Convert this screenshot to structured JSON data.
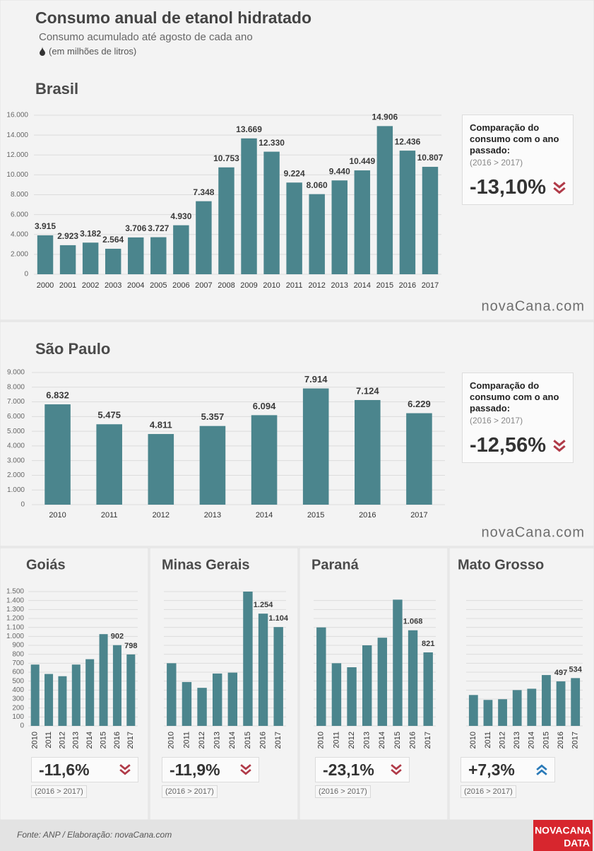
{
  "header": {
    "title": "Consumo anual de etanol hidratado",
    "subtitle": "Consumo acumulado até agosto de cada ano",
    "unit": "(em milhões de litros)"
  },
  "watermark": "novaCana.com",
  "footer": {
    "source": "Fonte: ANP  / Elaboração: novaCana.com",
    "logo_top": "NOVACANA",
    "logo_bottom": "DATA"
  },
  "chart_data": [
    {
      "type": "bar",
      "title": "Brasil",
      "color": "#4b858d",
      "grid": true,
      "categories": [
        "2000",
        "2001",
        "2002",
        "2003",
        "2004",
        "2005",
        "2006",
        "2007",
        "2008",
        "2009",
        "2010",
        "2011",
        "2012",
        "2013",
        "2014",
        "2015",
        "2016",
        "2017"
      ],
      "values": [
        3915,
        2923,
        3182,
        2564,
        3706,
        3727,
        4930,
        7348,
        10753,
        13669,
        12330,
        9224,
        8060,
        9440,
        10449,
        14906,
        12436,
        10807
      ],
      "value_labels": [
        "3.915",
        "2.923",
        "3.182",
        "2.564",
        "3.706",
        "3.727",
        "4.930",
        "7.348",
        "10.753",
        "13.669",
        "12.330",
        "9.224",
        "8.060",
        "9.440",
        "10.449",
        "14.906",
        "12.436",
        "10.807"
      ],
      "ylim": [
        0,
        16000
      ],
      "yticks": [
        0,
        {
          "value": 2000,
          "label": "2.000"
        },
        {
          "value": 4000,
          "label": "4.000"
        },
        {
          "value": 6000,
          "label": "6.000"
        },
        {
          "value": 8000,
          "label": "8.000"
        },
        {
          "value": 10000,
          "label": "10.000"
        },
        {
          "value": 12000,
          "label": "12.000"
        },
        {
          "value": 14000,
          "label": "14.000"
        },
        {
          "value": 16000,
          "label": "16.000"
        }
      ],
      "comparison": {
        "heading": "Comparação do consumo com o ano passado:",
        "period": "(2016 > 2017)",
        "change": "-13,10%",
        "trend": "down"
      }
    },
    {
      "type": "bar",
      "title": "São Paulo",
      "color": "#4b858d",
      "grid": true,
      "categories": [
        "2010",
        "2011",
        "2012",
        "2013",
        "2014",
        "2015",
        "2016",
        "2017"
      ],
      "values": [
        6832,
        5475,
        4811,
        5357,
        6094,
        7914,
        7124,
        6229
      ],
      "value_labels": [
        "6.832",
        "5.475",
        "4.811",
        "5.357",
        "6.094",
        "7.914",
        "7.124",
        "6.229"
      ],
      "ylim": [
        0,
        9000
      ],
      "yticks": [
        0,
        {
          "value": 1000,
          "label": "1.000"
        },
        {
          "value": 2000,
          "label": "2.000"
        },
        {
          "value": 3000,
          "label": "3.000"
        },
        {
          "value": 4000,
          "label": "4.000"
        },
        {
          "value": 5000,
          "label": "5.000"
        },
        {
          "value": 6000,
          "label": "6.000"
        },
        {
          "value": 7000,
          "label": "7.000"
        },
        {
          "value": 8000,
          "label": "8.000"
        },
        {
          "value": 9000,
          "label": "9.000"
        }
      ],
      "comparison": {
        "heading": "Comparação do consumo com o ano passado:",
        "period": "(2016 > 2017)",
        "change": "-12,56%",
        "trend": "down"
      }
    },
    {
      "type": "bar",
      "title": "Goiás",
      "color": "#4b858d",
      "grid": true,
      "categories": [
        "2010",
        "2011",
        "2012",
        "2013",
        "2014",
        "2015",
        "2016",
        "2017"
      ],
      "values": [
        685,
        580,
        555,
        685,
        745,
        1025,
        902,
        798
      ],
      "value_labels": [
        null,
        null,
        null,
        null,
        null,
        null,
        "902",
        "798"
      ],
      "ylim": [
        0,
        1500
      ],
      "yticks": [
        0,
        100,
        200,
        300,
        400,
        500,
        600,
        700,
        800,
        900,
        {
          "value": 1000,
          "label": "1.000"
        },
        {
          "value": 1100,
          "label": "1.100"
        },
        {
          "value": 1200,
          "label": "1.200"
        },
        {
          "value": 1300,
          "label": "1.300"
        },
        {
          "value": 1400,
          "label": "1.400"
        },
        {
          "value": 1500,
          "label": "1.500"
        }
      ],
      "comparison": {
        "period": "(2016 > 2017)",
        "change": "-11,6%",
        "trend": "down"
      }
    },
    {
      "type": "bar",
      "title": "Minas Gerais",
      "color": "#4b858d",
      "grid": true,
      "tick_labels": false,
      "categories": [
        "2010",
        "2011",
        "2012",
        "2013",
        "2014",
        "2015",
        "2016",
        "2017"
      ],
      "values": [
        700,
        490,
        425,
        585,
        595,
        1500,
        1254,
        1104
      ],
      "value_labels": [
        null,
        null,
        null,
        null,
        null,
        null,
        "1.254",
        "1.104"
      ],
      "ylim": [
        0,
        1500
      ],
      "yticks": [
        0,
        100,
        200,
        300,
        400,
        500,
        600,
        700,
        800,
        900,
        1000,
        1100,
        1200,
        1300,
        1400,
        1500
      ],
      "comparison": {
        "period": "(2016 > 2017)",
        "change": "-11,9%",
        "trend": "down"
      }
    },
    {
      "type": "bar",
      "title": "Paraná",
      "color": "#4b858d",
      "grid": true,
      "tick_labels": false,
      "categories": [
        "2010",
        "2011",
        "2012",
        "2013",
        "2014",
        "2015",
        "2016",
        "2017"
      ],
      "values": [
        1100,
        700,
        655,
        900,
        985,
        1410,
        1068,
        821
      ],
      "value_labels": [
        null,
        null,
        null,
        null,
        null,
        null,
        "1.068",
        "821"
      ],
      "ylim": [
        0,
        1500
      ],
      "yticks": [
        0,
        100,
        200,
        300,
        400,
        500,
        600,
        700,
        800,
        900,
        1000,
        1100,
        1200,
        1300,
        1400
      ],
      "comparison": {
        "period": "(2016 > 2017)",
        "change": "-23,1%",
        "trend": "down"
      }
    },
    {
      "type": "bar",
      "title": "Mato Grosso",
      "color": "#4b858d",
      "grid": true,
      "tick_labels": false,
      "categories": [
        "2010",
        "2011",
        "2012",
        "2013",
        "2014",
        "2015",
        "2016",
        "2017"
      ],
      "values": [
        345,
        290,
        298,
        400,
        415,
        568,
        497,
        534
      ],
      "value_labels": [
        null,
        null,
        null,
        null,
        null,
        null,
        "497",
        "534"
      ],
      "ylim": [
        0,
        1500
      ],
      "yticks": [
        0,
        100,
        200,
        300,
        400,
        500,
        600,
        700,
        800,
        900,
        1000,
        1100,
        1200,
        1300,
        1400
      ],
      "comparison": {
        "period": "(2016 > 2017)",
        "change": "+7,3%",
        "trend": "up"
      }
    }
  ]
}
